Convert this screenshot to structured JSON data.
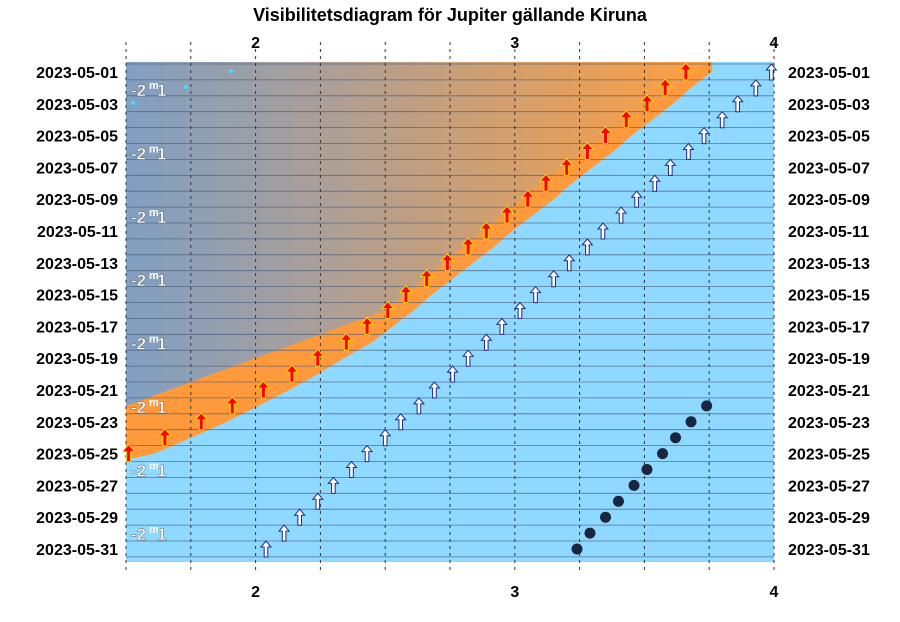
{
  "chart_data": {
    "type": "scatter",
    "title": "Visibilitetsdiagram för Jupiter gällande Kiruna",
    "x_ticks": [
      2,
      3,
      4
    ],
    "xlim": [
      1.5,
      4.0
    ],
    "row_labels": [
      "2023-05-01",
      "2023-05-03",
      "2023-05-05",
      "2023-05-07",
      "2023-05-09",
      "2023-05-11",
      "2023-05-13",
      "2023-05-15",
      "2023-05-17",
      "2023-05-19",
      "2023-05-21",
      "2023-05-23",
      "2023-05-25",
      "2023-05-27",
      "2023-05-29",
      "2023-05-31"
    ],
    "magnitude_label": "-2",
    "magnitude_sup": "m",
    "magnitude_tail": "1",
    "colors": {
      "night": "#6a9fd9",
      "twilight": "#ff9a3c",
      "day": "#8fd8ff",
      "rise_arrow": "#ff0000",
      "transit_arrow": "#ffffff",
      "dot": "#1a2540"
    },
    "rise_arrows": [
      {
        "date": "2023-05-01",
        "x": 3.66
      },
      {
        "date": "2023-05-02",
        "x": 3.58
      },
      {
        "date": "2023-05-03",
        "x": 3.51
      },
      {
        "date": "2023-05-04",
        "x": 3.43
      },
      {
        "date": "2023-05-05",
        "x": 3.35
      },
      {
        "date": "2023-05-06",
        "x": 3.28
      },
      {
        "date": "2023-05-07",
        "x": 3.2
      },
      {
        "date": "2023-05-08",
        "x": 3.12
      },
      {
        "date": "2023-05-09",
        "x": 3.05
      },
      {
        "date": "2023-05-10",
        "x": 2.97
      },
      {
        "date": "2023-05-11",
        "x": 2.89
      },
      {
        "date": "2023-05-12",
        "x": 2.82
      },
      {
        "date": "2023-05-13",
        "x": 2.74
      },
      {
        "date": "2023-05-14",
        "x": 2.66
      },
      {
        "date": "2023-05-15",
        "x": 2.58
      },
      {
        "date": "2023-05-16",
        "x": 2.51
      },
      {
        "date": "2023-05-17",
        "x": 2.43
      },
      {
        "date": "2023-05-18",
        "x": 2.35
      },
      {
        "date": "2023-05-19",
        "x": 2.24
      },
      {
        "date": "2023-05-20",
        "x": 2.14
      },
      {
        "date": "2023-05-21",
        "x": 2.03
      },
      {
        "date": "2023-05-22",
        "x": 1.91
      },
      {
        "date": "2023-05-23",
        "x": 1.79
      },
      {
        "date": "2023-05-24",
        "x": 1.65
      },
      {
        "date": "2023-05-25",
        "x": 1.51
      }
    ],
    "transit_arrows": [
      {
        "date": "2023-05-01",
        "x": 3.99
      },
      {
        "date": "2023-05-02",
        "x": 3.93
      },
      {
        "date": "2023-05-03",
        "x": 3.86
      },
      {
        "date": "2023-05-04",
        "x": 3.8
      },
      {
        "date": "2023-05-05",
        "x": 3.73
      },
      {
        "date": "2023-05-06",
        "x": 3.67
      },
      {
        "date": "2023-05-07",
        "x": 3.6
      },
      {
        "date": "2023-05-08",
        "x": 3.54
      },
      {
        "date": "2023-05-09",
        "x": 3.47
      },
      {
        "date": "2023-05-10",
        "x": 3.41
      },
      {
        "date": "2023-05-11",
        "x": 3.34
      },
      {
        "date": "2023-05-12",
        "x": 3.28
      },
      {
        "date": "2023-05-13",
        "x": 3.21
      },
      {
        "date": "2023-05-14",
        "x": 3.15
      },
      {
        "date": "2023-05-15",
        "x": 3.08
      },
      {
        "date": "2023-05-16",
        "x": 3.02
      },
      {
        "date": "2023-05-17",
        "x": 2.95
      },
      {
        "date": "2023-05-18",
        "x": 2.89
      },
      {
        "date": "2023-05-19",
        "x": 2.82
      },
      {
        "date": "2023-05-20",
        "x": 2.76
      },
      {
        "date": "2023-05-21",
        "x": 2.69
      },
      {
        "date": "2023-05-22",
        "x": 2.63
      },
      {
        "date": "2023-05-23",
        "x": 2.56
      },
      {
        "date": "2023-05-24",
        "x": 2.5
      },
      {
        "date": "2023-05-25",
        "x": 2.43
      },
      {
        "date": "2023-05-26",
        "x": 2.37
      },
      {
        "date": "2023-05-27",
        "x": 2.3
      },
      {
        "date": "2023-05-28",
        "x": 2.24
      },
      {
        "date": "2023-05-29",
        "x": 2.17
      },
      {
        "date": "2023-05-30",
        "x": 2.11
      },
      {
        "date": "2023-05-31",
        "x": 2.04
      }
    ],
    "dots": [
      {
        "date": "2023-05-22",
        "x": 3.74
      },
      {
        "date": "2023-05-23",
        "x": 3.68
      },
      {
        "date": "2023-05-24",
        "x": 3.62
      },
      {
        "date": "2023-05-25",
        "x": 3.57
      },
      {
        "date": "2023-05-26",
        "x": 3.51
      },
      {
        "date": "2023-05-27",
        "x": 3.46
      },
      {
        "date": "2023-05-28",
        "x": 3.4
      },
      {
        "date": "2023-05-29",
        "x": 3.35
      },
      {
        "date": "2023-05-30",
        "x": 3.29
      },
      {
        "date": "2023-05-31",
        "x": 3.24
      }
    ],
    "grid": true
  }
}
